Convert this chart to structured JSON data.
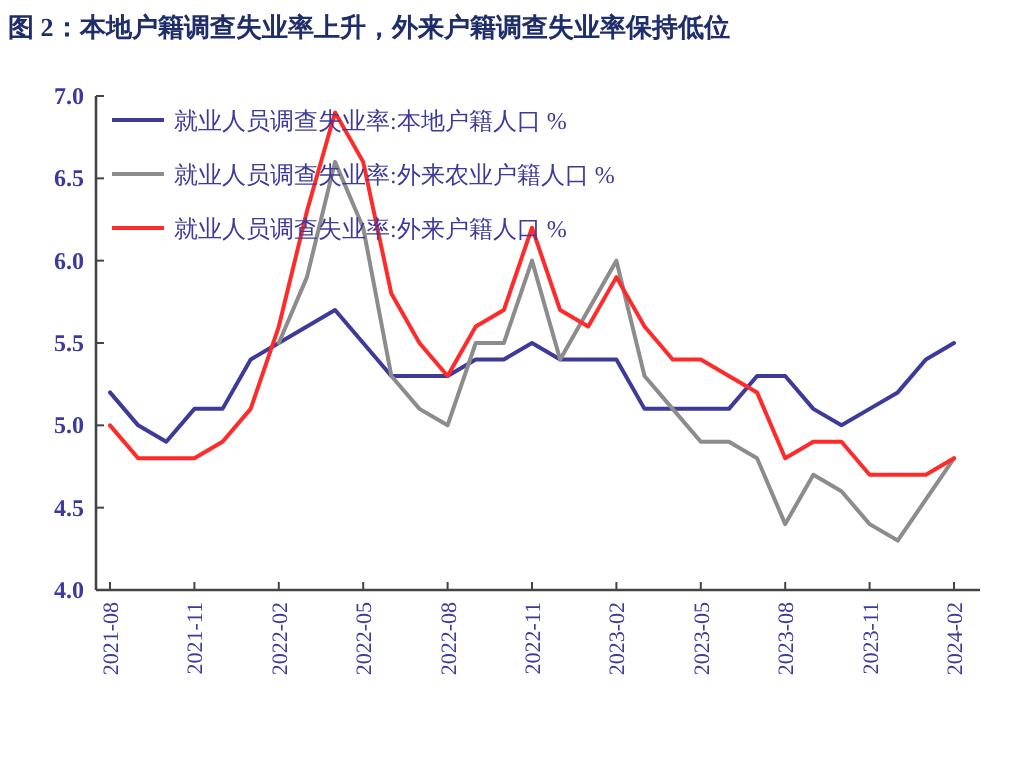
{
  "chart_data": {
    "type": "line",
    "title": "图 2：本地户籍调查失业率上升，外来户籍调查失业率保持低位",
    "categories": [
      "2021-08",
      null,
      null,
      "2021-11",
      null,
      null,
      "2022-02",
      null,
      null,
      "2022-05",
      null,
      null,
      "2022-08",
      null,
      null,
      "2022-11",
      null,
      null,
      "2023-02",
      null,
      null,
      "2023-05",
      null,
      null,
      "2023-08",
      null,
      null,
      "2023-11",
      null,
      null,
      "2024-02"
    ],
    "series": [
      {
        "name": "就业人员调查失业率:本地户籍人口 %",
        "color": "#3d3a9a",
        "values": [
          5.2,
          5.0,
          4.9,
          5.1,
          5.1,
          5.4,
          5.5,
          5.6,
          5.7,
          5.5,
          5.3,
          5.3,
          5.3,
          5.4,
          5.4,
          5.5,
          5.4,
          5.4,
          5.4,
          5.1,
          5.1,
          5.1,
          5.1,
          5.3,
          5.3,
          5.1,
          5.0,
          5.1,
          5.2,
          5.4,
          5.5
        ]
      },
      {
        "name": "就业人员调查失业率:外来农业户籍人口 %",
        "color": "#8c8c8c",
        "values": [
          null,
          null,
          null,
          null,
          null,
          null,
          5.5,
          5.9,
          6.6,
          6.2,
          5.3,
          5.1,
          5.0,
          5.5,
          5.5,
          6.0,
          5.4,
          5.7,
          6.0,
          5.3,
          5.1,
          4.9,
          4.9,
          4.8,
          4.4,
          4.7,
          4.6,
          4.4,
          4.3,
          4.55,
          4.8
        ]
      },
      {
        "name": "就业人员调查失业率:外来户籍人口 %",
        "color": "#ff2a2a",
        "values": [
          5.0,
          4.8,
          4.8,
          4.8,
          4.9,
          5.1,
          5.6,
          6.3,
          6.9,
          6.6,
          5.8,
          5.5,
          5.3,
          5.6,
          5.7,
          6.2,
          5.7,
          5.6,
          5.9,
          5.6,
          5.4,
          5.4,
          5.3,
          5.2,
          4.8,
          4.9,
          4.9,
          4.7,
          4.7,
          4.7,
          4.8
        ]
      }
    ],
    "ylim": [
      4,
      7
    ],
    "yticks": [
      {
        "value": 4,
        "label": "4.0"
      },
      {
        "value": 4.5,
        "label": "4.5"
      },
      {
        "value": 5,
        "label": "5.0"
      },
      {
        "value": 5.5,
        "label": "5.5"
      },
      {
        "value": 6,
        "label": "6.0"
      },
      {
        "value": 6.5,
        "label": "6.5"
      },
      {
        "value": 7,
        "label": "7.0"
      }
    ],
    "legend": "top left",
    "grid": false
  }
}
